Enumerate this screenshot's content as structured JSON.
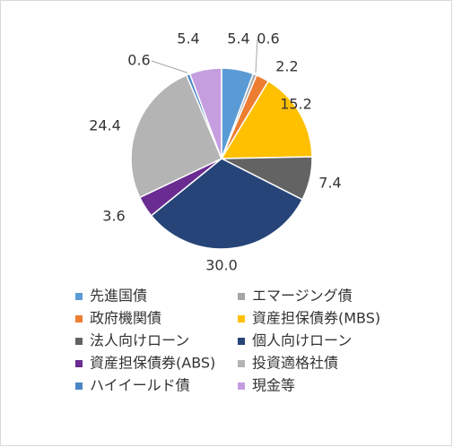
{
  "chart_data": {
    "type": "pie",
    "categories": [
      "先進国債",
      "エマージング債",
      "政府機関債",
      "資産担保債券(MBS)",
      "法人向けローン",
      "個人向けローン",
      "資産担保債券(ABS)",
      "投資適格社債",
      "ハイイールド債",
      "現金等"
    ],
    "values": [
      5.4,
      0.6,
      2.2,
      15.2,
      7.4,
      30.0,
      3.6,
      24.4,
      0.6,
      5.4
    ],
    "value_labels": [
      "5.4",
      "0.6",
      "2.2",
      "15.2",
      "7.4",
      "30.0",
      "3.6",
      "24.4",
      "0.6",
      "5.4"
    ],
    "colors": [
      "#5b9bd5",
      "#a5a5a5",
      "#ed7d31",
      "#ffc000",
      "#636363",
      "#264478",
      "#6a2c91",
      "#b4b4b4",
      "#4a86c5",
      "#c59ee0"
    ]
  }
}
